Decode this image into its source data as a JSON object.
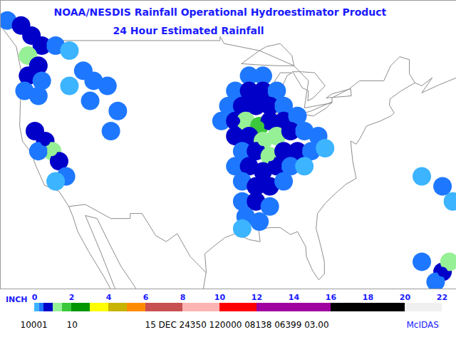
{
  "chart_data": {
    "type": "map",
    "title": "NOAA/NESDIS Rainfall Operational Hydroestimator Product",
    "subtitle": "24 Hour Estimated Rainfall",
    "xlim": [
      -127,
      -61
    ],
    "ylim": [
      24.3,
      53
    ],
    "tick_labels": false,
    "footer": [
      "10001",
      "10",
      "15 DEC 24350 120000 08138 06399 03.00",
      "McIDAS"
    ],
    "colorbar": {
      "label": "INCH",
      "range": [
        0,
        22
      ],
      "ticks": [
        0,
        2,
        4,
        6,
        8,
        10,
        12,
        14,
        16,
        18,
        20,
        22
      ],
      "bins": [
        0,
        0.25,
        0.5,
        1,
        1.5,
        2,
        3,
        4,
        5,
        6,
        8,
        10,
        12,
        16,
        20,
        22
      ],
      "colors": [
        "#3cb4ff",
        "#1e78ff",
        "#0000c8",
        "#96f096",
        "#3cc83c",
        "#009600",
        "#ffff00",
        "#c8b400",
        "#ff8c00",
        "#c85050",
        "#ffb4b4",
        "#ff0000",
        "#a000a0",
        "#000000",
        "#f0f0f0"
      ]
    },
    "rain": [
      [
        -91,
        45.5,
        0.3
      ],
      [
        -89,
        45.5,
        0.3
      ],
      [
        -93,
        44,
        0.4
      ],
      [
        -91,
        44,
        0.6
      ],
      [
        -89,
        44,
        0.5
      ],
      [
        -87,
        44,
        0.3
      ],
      [
        -94,
        42.5,
        0.4
      ],
      [
        -92,
        42.5,
        0.8
      ],
      [
        -90,
        42.5,
        0.9
      ],
      [
        -88,
        42.5,
        0.6
      ],
      [
        -86,
        42.5,
        0.3
      ],
      [
        -95,
        41,
        0.3
      ],
      [
        -93,
        41,
        0.7
      ],
      [
        -91.5,
        41,
        1.2
      ],
      [
        -89.5,
        40.5,
        1.6
      ],
      [
        -88,
        41,
        0.8
      ],
      [
        -86,
        41,
        0.5
      ],
      [
        -84,
        41.5,
        0.3
      ],
      [
        -93,
        39.5,
        0.5
      ],
      [
        -91,
        39.5,
        0.9
      ],
      [
        -89,
        39,
        1.4
      ],
      [
        -87,
        39.5,
        1.0
      ],
      [
        -85,
        40,
        0.6
      ],
      [
        -83,
        40,
        0.4
      ],
      [
        -81,
        39.5,
        0.3
      ],
      [
        -92,
        38,
        0.4
      ],
      [
        -90,
        38,
        0.7
      ],
      [
        -88,
        37.5,
        1.1
      ],
      [
        -86,
        38,
        0.9
      ],
      [
        -84,
        38,
        0.5
      ],
      [
        -82,
        38,
        0.4
      ],
      [
        -80,
        38.3,
        0.2
      ],
      [
        -93,
        36.5,
        0.3
      ],
      [
        -91,
        36.5,
        0.6
      ],
      [
        -89,
        36,
        0.8
      ],
      [
        -87,
        36.5,
        0.7
      ],
      [
        -85,
        36.5,
        0.4
      ],
      [
        -83,
        36.5,
        0.2
      ],
      [
        -92,
        35,
        0.3
      ],
      [
        -90,
        34.5,
        0.6
      ],
      [
        -88,
        34.5,
        0.5
      ],
      [
        -86,
        35,
        0.3
      ],
      [
        -92,
        33,
        0.3
      ],
      [
        -90,
        33,
        0.5
      ],
      [
        -88,
        32.5,
        0.3
      ],
      [
        -91.5,
        31.5,
        0.3
      ],
      [
        -89.5,
        31,
        0.3
      ],
      [
        -92,
        30.3,
        0.2
      ],
      [
        -126,
        51,
        0.4
      ],
      [
        -124,
        50.5,
        0.6
      ],
      [
        -122.5,
        49.5,
        0.8
      ],
      [
        -121,
        48.5,
        0.6
      ],
      [
        -123,
        47.5,
        1.2
      ],
      [
        -121.5,
        46.5,
        0.9
      ],
      [
        -123,
        45.5,
        0.7
      ],
      [
        -121,
        45,
        0.4
      ],
      [
        -123.5,
        44,
        0.4
      ],
      [
        -121.5,
        43.5,
        0.3
      ],
      [
        -119,
        48.5,
        0.3
      ],
      [
        -117,
        48,
        0.2
      ],
      [
        -115,
        46,
        0.3
      ],
      [
        -113.5,
        45,
        0.3
      ],
      [
        -111.5,
        44.5,
        0.4
      ],
      [
        -114,
        43,
        0.3
      ],
      [
        -110,
        42,
        0.3
      ],
      [
        -111,
        40,
        0.3
      ],
      [
        -117,
        44.5,
        0.2
      ],
      [
        -122,
        40,
        0.5
      ],
      [
        -120.5,
        39,
        0.6
      ],
      [
        -119.5,
        38,
        1.1
      ],
      [
        -118.5,
        37,
        0.7
      ],
      [
        -121.5,
        38,
        0.3
      ],
      [
        -117.5,
        35.5,
        0.3
      ],
      [
        -119,
        35,
        0.2
      ],
      [
        -66,
        35.5,
        0.2
      ],
      [
        -63,
        34.5,
        0.3
      ],
      [
        -61.5,
        33,
        0.2
      ],
      [
        -66,
        27,
        0.3
      ],
      [
        -63,
        26,
        0.8
      ],
      [
        -62,
        27,
        1.3
      ],
      [
        -64,
        25,
        0.4
      ]
    ],
    "outlines": [
      [
        [
          -127,
          50.5
        ],
        [
          -124.7,
          48.4
        ],
        [
          -124,
          46
        ],
        [
          -124.1,
          43
        ],
        [
          -124.2,
          40.5
        ],
        [
          -123.8,
          39
        ],
        [
          -122.5,
          37.8
        ],
        [
          -121.9,
          36.6
        ],
        [
          -120.6,
          34.6
        ],
        [
          -118.5,
          34
        ],
        [
          -117.1,
          32.5
        ],
        [
          -116.5,
          31.5
        ],
        [
          -115.8,
          30
        ],
        [
          -114.2,
          28
        ],
        [
          -112,
          25.5
        ],
        [
          -110,
          23
        ]
      ],
      [
        [
          -109.5,
          23.2
        ],
        [
          -110.5,
          24.5
        ],
        [
          -112.5,
          28
        ],
        [
          -114.7,
          31.6
        ],
        [
          -113,
          31.3
        ],
        [
          -111,
          28.5
        ],
        [
          -109.5,
          26.5
        ],
        [
          -108,
          25
        ],
        [
          -105.7,
          22.5
        ]
      ],
      [
        [
          -97.7,
          24
        ],
        [
          -97.2,
          26
        ],
        [
          -97.4,
          27.8
        ],
        [
          -96,
          28.6
        ],
        [
          -94.5,
          29.4
        ],
        [
          -93,
          29.8
        ],
        [
          -91,
          29.2
        ],
        [
          -89.4,
          29
        ],
        [
          -89.6,
          30.2
        ],
        [
          -88,
          30.4
        ],
        [
          -86.5,
          30.4
        ],
        [
          -85,
          29.7
        ],
        [
          -84,
          30
        ],
        [
          -82.8,
          28.5
        ],
        [
          -82.7,
          27.5
        ],
        [
          -81.8,
          26.1
        ],
        [
          -80.9,
          25.2
        ],
        [
          -80.1,
          25.8
        ],
        [
          -80.1,
          27
        ],
        [
          -80.6,
          28.5
        ],
        [
          -81.3,
          30.3
        ],
        [
          -81.1,
          31.8
        ],
        [
          -80,
          32.8
        ],
        [
          -78.5,
          33.8
        ],
        [
          -77,
          34.7
        ],
        [
          -75.5,
          35.3
        ],
        [
          -76,
          37
        ],
        [
          -76.3,
          39
        ],
        [
          -75.5,
          38.7
        ],
        [
          -75,
          39.2
        ],
        [
          -74,
          40.5
        ],
        [
          -72,
          41
        ],
        [
          -70.5,
          41.5
        ],
        [
          -70,
          41.8
        ],
        [
          -70.7,
          42.6
        ],
        [
          -70.6,
          43.2
        ],
        [
          -69,
          44
        ],
        [
          -67,
          44.8
        ],
        [
          -66,
          44.5
        ],
        [
          -64.5,
          45.3
        ],
        [
          -66,
          43.8
        ],
        [
          -63.5,
          44.6
        ],
        [
          -61,
          45.3
        ]
      ],
      [
        [
          -123.1,
          49
        ],
        [
          -95.2,
          49
        ],
        [
          -95.2,
          49.4
        ],
        [
          -94.6,
          48.7
        ],
        [
          -89.5,
          48
        ],
        [
          -84.5,
          46.5
        ],
        [
          -82.4,
          45
        ],
        [
          -83,
          42.3
        ],
        [
          -79,
          42.8
        ],
        [
          -79,
          43.3
        ],
        [
          -76.5,
          44.2
        ],
        [
          -75,
          45
        ],
        [
          -71.5,
          45
        ],
        [
          -70.5,
          46.5
        ],
        [
          -69.2,
          47.4
        ],
        [
          -67.8,
          47.1
        ],
        [
          -67.8,
          45.7
        ],
        [
          -67,
          44.8
        ]
      ],
      [
        [
          -117.1,
          32.5
        ],
        [
          -114.7,
          32.7
        ],
        [
          -111,
          31.3
        ],
        [
          -108.2,
          31.3
        ],
        [
          -108.2,
          31.8
        ],
        [
          -106.5,
          31.8
        ],
        [
          -104.5,
          29.6
        ],
        [
          -103,
          29
        ],
        [
          -101.4,
          29.8
        ],
        [
          -99.5,
          27.5
        ],
        [
          -97.2,
          25.9
        ]
      ],
      [
        [
          -87.8,
          41.6
        ],
        [
          -87.2,
          41.6
        ],
        [
          -86.3,
          42.5
        ],
        [
          -86.5,
          44
        ],
        [
          -85.5,
          45.5
        ],
        [
          -84.8,
          45.8
        ],
        [
          -86.5,
          45.8
        ],
        [
          -87.7,
          44.5
        ],
        [
          -87.9,
          43
        ],
        [
          -87.8,
          41.6
        ]
      ],
      [
        [
          -92.1,
          46.7
        ],
        [
          -90,
          46.6
        ],
        [
          -87,
          46.5
        ],
        [
          -84.5,
          46.5
        ],
        [
          -84.8,
          47.5
        ],
        [
          -86.5,
          48.7
        ],
        [
          -88.5,
          48.4
        ],
        [
          -89.5,
          48
        ],
        [
          -92.1,
          46.7
        ]
      ],
      [
        [
          -84.7,
          45.9
        ],
        [
          -83.5,
          45.9
        ],
        [
          -81.5,
          45.8
        ],
        [
          -80,
          44.5
        ],
        [
          -81.7,
          43.3
        ],
        [
          -82.5,
          43
        ],
        [
          -82.4,
          44
        ],
        [
          -83.3,
          44.3
        ],
        [
          -84.7,
          45.9
        ]
      ],
      [
        [
          -83.5,
          41.7
        ],
        [
          -82,
          42
        ],
        [
          -79,
          42.9
        ],
        [
          -79.8,
          42.3
        ],
        [
          -81.7,
          41.5
        ],
        [
          -83.5,
          41.7
        ]
      ],
      [
        [
          -79.8,
          43.3
        ],
        [
          -76.2,
          43.5
        ],
        [
          -76.3,
          44.2
        ],
        [
          -79,
          43.7
        ],
        [
          -79.8,
          43.3
        ]
      ]
    ]
  }
}
